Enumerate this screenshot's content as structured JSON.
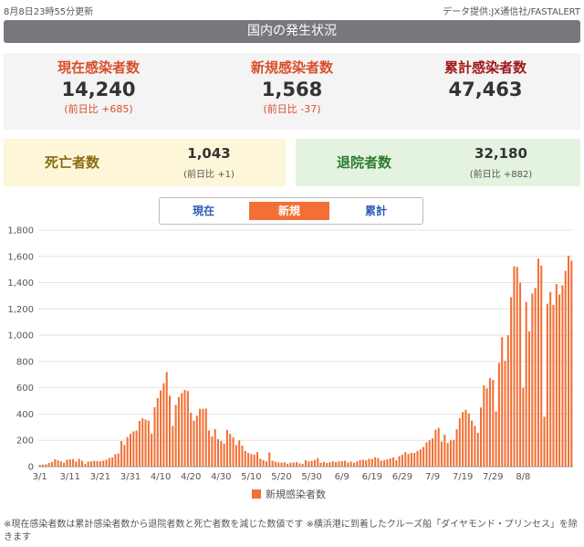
{
  "header": {
    "updated": "8月8日23時55分更新",
    "source": "データ提供:JX通信社/FASTALERT"
  },
  "banner": {
    "title": "国内の発生状況"
  },
  "stats": {
    "current": {
      "label": "現在感染者数",
      "value": "14,240",
      "change": "(前日比 +685)"
    },
    "new": {
      "label": "新規感染者数",
      "value": "1,568",
      "change": "(前日比 -37)"
    },
    "cumulative": {
      "label": "累計感染者数",
      "value": "47,463"
    },
    "deaths": {
      "label": "死亡者数",
      "value": "1,043",
      "change": "(前日比 +1)"
    },
    "recovered": {
      "label": "退院者数",
      "value": "32,180",
      "change": "(前日比 +882)"
    }
  },
  "tabs": [
    {
      "label": "現在",
      "active": false
    },
    {
      "label": "新規",
      "active": true
    },
    {
      "label": "累計",
      "active": false
    }
  ],
  "colors": {
    "bar": "#f27036",
    "accent": "#d94f2b",
    "tab_text": "#2b5bb8"
  },
  "chart_data": {
    "type": "bar",
    "legend": [
      "新規感染者数"
    ],
    "legend_position": "bottom-center",
    "ylim": [
      0,
      1800
    ],
    "yticks": [
      "0",
      "200",
      "400",
      "600",
      "800",
      "1,000",
      "1,200",
      "1,400",
      "1,600",
      "1,800"
    ],
    "xticks": [
      "3/1",
      "3/11",
      "3/21",
      "3/31",
      "4/10",
      "4/20",
      "4/30",
      "5/10",
      "5/20",
      "5/30",
      "6/9",
      "6/19",
      "6/29",
      "7/9",
      "7/19",
      "7/29",
      "8/8"
    ],
    "grid": true,
    "start_date": "3/1",
    "values": [
      14,
      15,
      18,
      28,
      35,
      56,
      48,
      40,
      30,
      52,
      55,
      57,
      38,
      60,
      45,
      20,
      38,
      40,
      45,
      42,
      40,
      46,
      53,
      66,
      70,
      94,
      100,
      195,
      165,
      225,
      250,
      268,
      275,
      349,
      368,
      358,
      350,
      250,
      452,
      522,
      580,
      635,
      720,
      540,
      310,
      470,
      530,
      560,
      583,
      575,
      410,
      350,
      388,
      440,
      440,
      442,
      275,
      230,
      285,
      210,
      195,
      175,
      280,
      250,
      222,
      164,
      200,
      160,
      120,
      104,
      95,
      92,
      110,
      60,
      50,
      40,
      108,
      45,
      38,
      32,
      30,
      33,
      22,
      30,
      31,
      35,
      25,
      21,
      48,
      40,
      44,
      52,
      65,
      30,
      36,
      28,
      33,
      40,
      35,
      40,
      42,
      45,
      31,
      38,
      30,
      40,
      50,
      52,
      48,
      60,
      58,
      71,
      65,
      45,
      50,
      56,
      62,
      70,
      48,
      80,
      90,
      110,
      97,
      105,
      104,
      120,
      131,
      150,
      184,
      201,
      215,
      280,
      295,
      191,
      244,
      180,
      200,
      203,
      285,
      368,
      415,
      432,
      405,
      350,
      310,
      258,
      450,
      619,
      595,
      674,
      660,
      420,
      790,
      985,
      805,
      1000,
      1290,
      1525,
      1520,
      1400,
      600,
      1254,
      1030,
      1318,
      1360,
      1583,
      1530,
      380,
      1240,
      1330,
      1230,
      1390,
      1310,
      1380,
      1490,
      1605,
      1568
    ]
  },
  "footnote": "※現在感染者数は累計感染者数から退院者数と死亡者数を減じた数値です ※横浜港に到着したクルーズ船「ダイヤモンド・プリンセス」を除きます"
}
